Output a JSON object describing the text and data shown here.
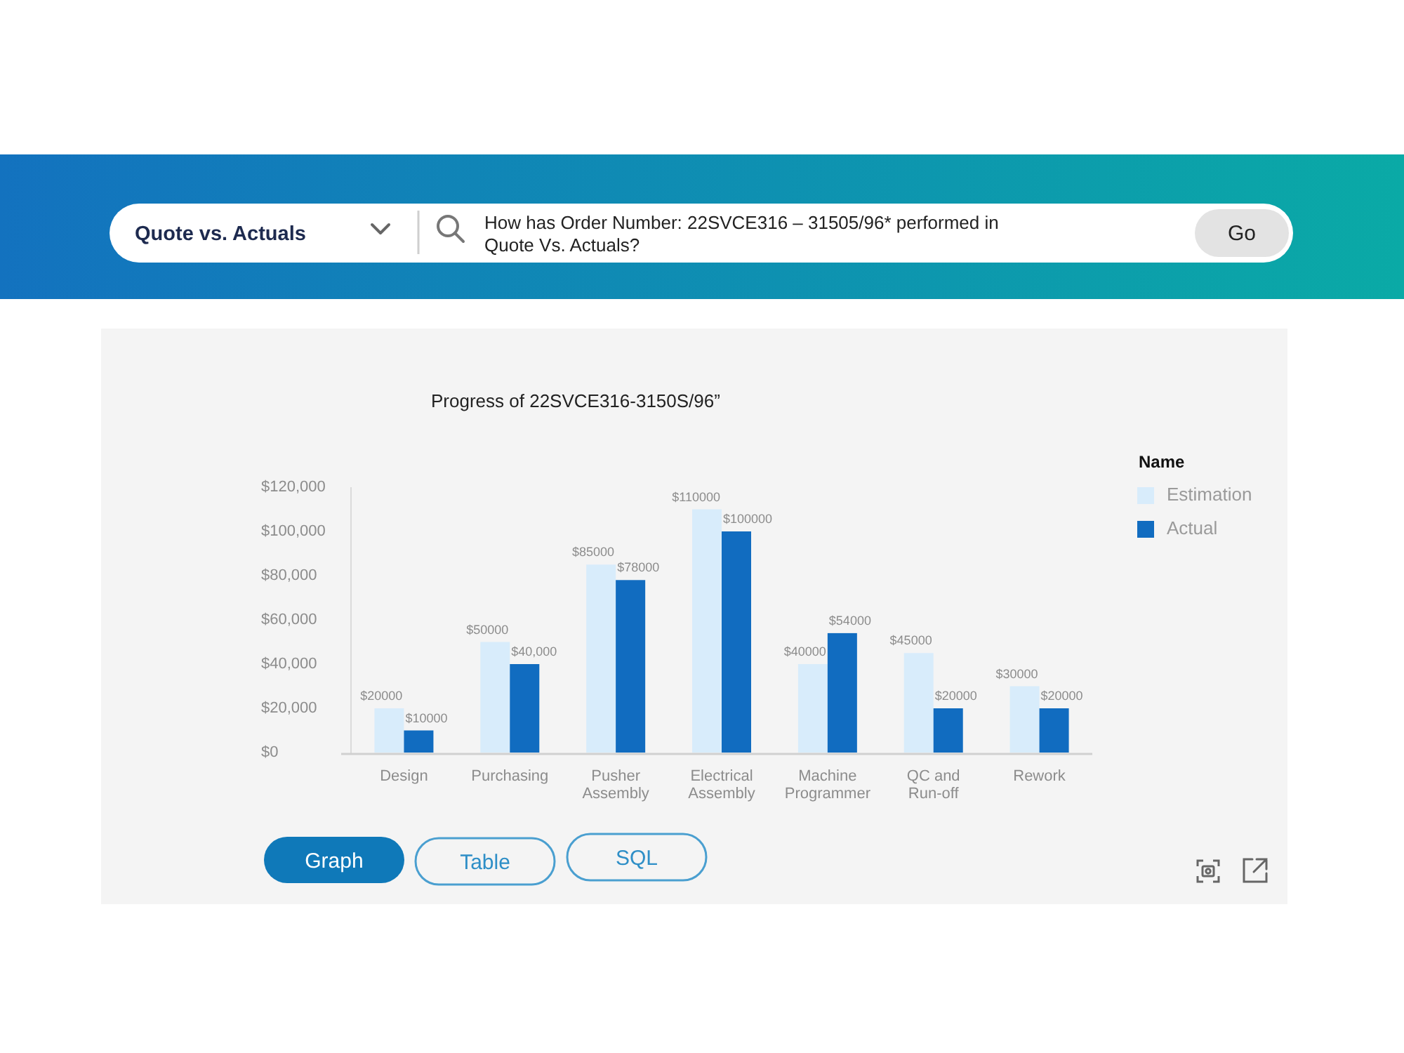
{
  "chart_data": {
    "type": "bar",
    "title": "Progress of 22SVCE316-3150S/96”",
    "categories": [
      "Design",
      "Purchasing",
      "Pusher Assembly",
      "Electrical Assembly",
      "Machine Programmer",
      "QC and Run-off",
      "Rework"
    ],
    "series": [
      {
        "name": "Estimation",
        "color": "#d8ecfb",
        "values": [
          20000,
          50000,
          85000,
          110000,
          40000,
          45000,
          30000
        ],
        "value_labels": [
          "$20000",
          "$50000",
          "$85000",
          "$110000",
          "$40000",
          "$45000",
          "$30000"
        ]
      },
      {
        "name": "Actual",
        "color": "#116cc0",
        "values": [
          10000,
          40000,
          78000,
          100000,
          54000,
          20000,
          20000
        ],
        "value_labels": [
          "$10000",
          "$40,000",
          "$78000",
          "$100000",
          "$54000",
          "$20000",
          "$20000"
        ]
      }
    ],
    "ylim": [
      0,
      120000
    ],
    "yticks": [
      {
        "value": 0,
        "label": "$0"
      },
      {
        "value": 20000,
        "label": "$20,000"
      },
      {
        "value": 40000,
        "label": "$40,000"
      },
      {
        "value": 60000,
        "label": "$60,000"
      },
      {
        "value": 80000,
        "label": "$80,000"
      },
      {
        "value": 100000,
        "label": "$100,000"
      },
      {
        "value": 120000,
        "label": "$120,000"
      }
    ],
    "legend": "right",
    "legend_title": "Name",
    "annotations": [
      "Quote vs. Actuals",
      "How has Order Number: 22SVCE316 – 31505/96* performed in Quote Vs. Actuals?",
      "Go",
      "Graph",
      "Table",
      "SQL"
    ]
  }
}
